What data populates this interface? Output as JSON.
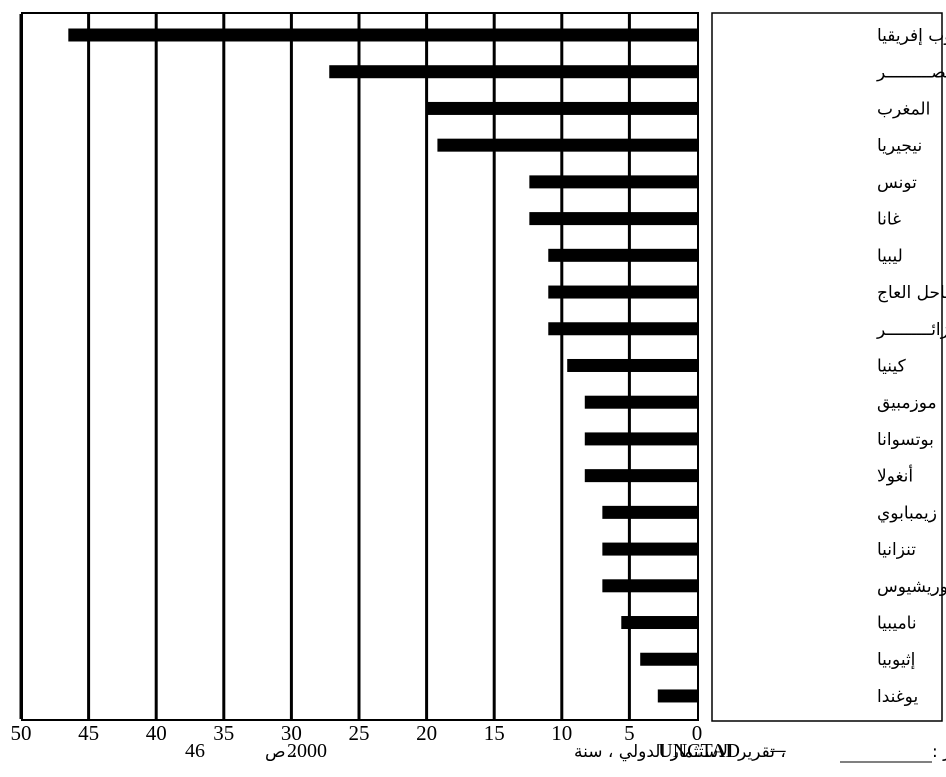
{
  "chart_data": {
    "type": "bar",
    "orientation": "horizontal",
    "x_direction": "right-to-left",
    "categories": [
      "جنوب إفريقيا",
      "مصـــــــــر",
      "المغرب",
      "نيجيريا",
      "تونس",
      "غانا",
      "ليبيا",
      "ساحل العاج",
      "الجزائـــــــــر",
      "كينيا",
      "موزمبيق",
      "بوتسوانا",
      "أنغولا",
      "زيمبابوي",
      "تنزانيا",
      "موريشيوس",
      "ناميبيا",
      "إثيوبيا",
      "يوغندا"
    ],
    "values": [
      46.5,
      27.2,
      20.0,
      19.2,
      12.4,
      12.4,
      11.0,
      11.0,
      11.0,
      9.6,
      8.3,
      8.3,
      8.3,
      7.0,
      7.0,
      7.0,
      5.6,
      4.2,
      2.9
    ],
    "xlim": [
      0,
      50
    ],
    "xticks": [
      50,
      45,
      40,
      35,
      30,
      25,
      20,
      15,
      10,
      5,
      0
    ],
    "grid": true,
    "bar_color": "#000000"
  },
  "source": {
    "label": "المصـــــدر :",
    "dash": "—",
    "org": "UNCTAD",
    "text": "، تقرير الاستثمار الدولي ، سنة",
    "year": "2000",
    "page_label": "، ص",
    "page": "46"
  }
}
